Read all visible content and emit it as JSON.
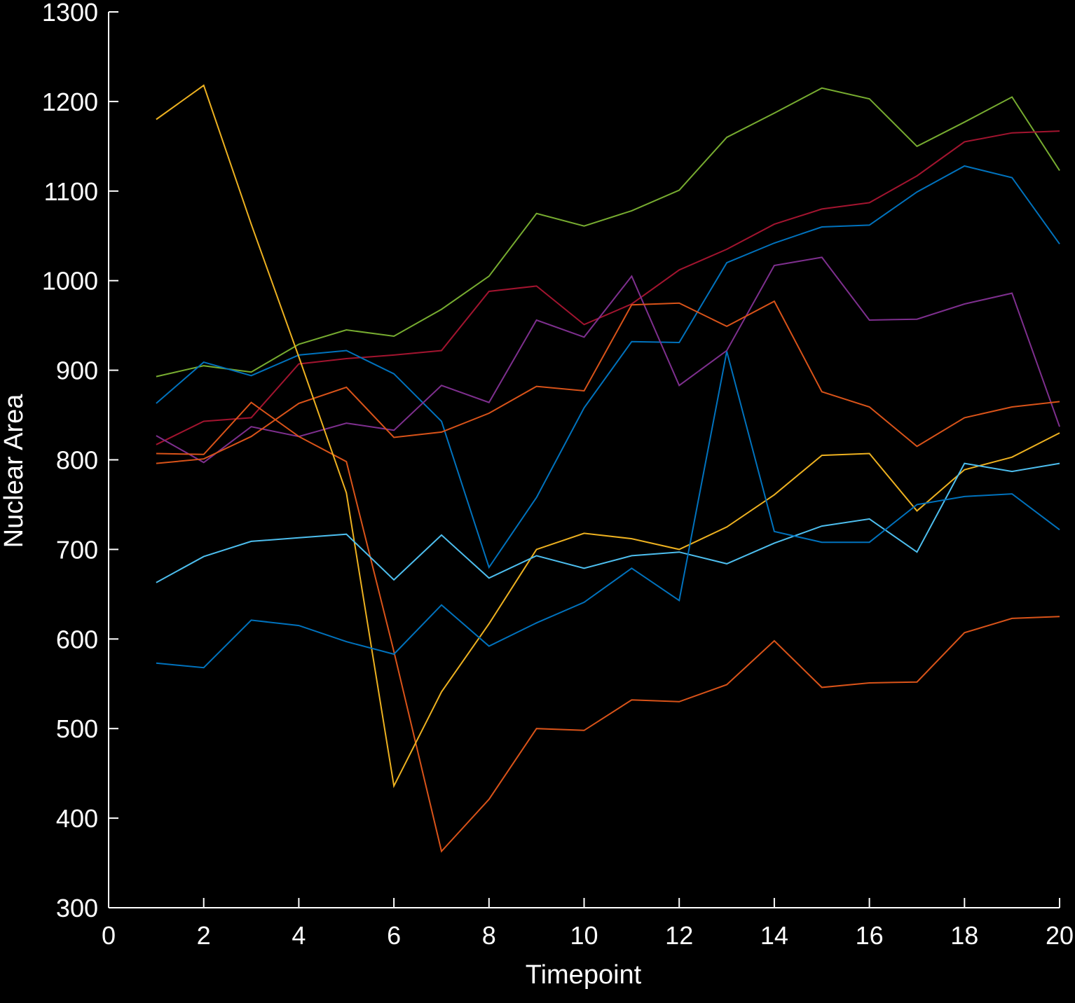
{
  "chart_data": {
    "type": "line",
    "title": "",
    "xlabel": "Timepoint",
    "ylabel": "Nuclear Area",
    "xlim": [
      0,
      20
    ],
    "ylim": [
      300,
      1300
    ],
    "x_ticks": [
      "0",
      "2",
      "4",
      "6",
      "8",
      "10",
      "12",
      "14",
      "16",
      "18",
      "20"
    ],
    "y_ticks": [
      "300",
      "400",
      "500",
      "600",
      "700",
      "800",
      "900",
      "1000",
      "1100",
      "1200",
      "1300"
    ],
    "grid": false,
    "background": "#000000",
    "axis_color": "#ffffff",
    "x": [
      1,
      2,
      3,
      4,
      5,
      6,
      7,
      8,
      9,
      10,
      11,
      12,
      13,
      14,
      15,
      16,
      17,
      18,
      19,
      20
    ],
    "series": [
      {
        "color": "#77ac30",
        "values": [
          893,
          905,
          898,
          929,
          945,
          938,
          968,
          1005,
          1075,
          1061,
          1078,
          1101,
          1160,
          1187,
          1215,
          1203,
          1150,
          1177,
          1205,
          1123
        ]
      },
      {
        "color": "#a2142f",
        "values": [
          817,
          843,
          847,
          907,
          913,
          917,
          922,
          988,
          994,
          951,
          974,
          1012,
          1035,
          1063,
          1080,
          1087,
          1117,
          1155,
          1165,
          1167
        ]
      },
      {
        "color": "#0072bd",
        "values": [
          863,
          909,
          894,
          917,
          922,
          896,
          843,
          680,
          758,
          858,
          932,
          931,
          1020,
          1042,
          1060,
          1062,
          1099,
          1128,
          1115,
          1041
        ]
      },
      {
        "color": "#7e2f8e",
        "values": [
          827,
          797,
          837,
          826,
          841,
          833,
          883,
          864,
          956,
          937,
          1005,
          883,
          922,
          1017,
          1026,
          956,
          957,
          974,
          986,
          837
        ]
      },
      {
        "color": "#d95319",
        "values": [
          796,
          801,
          826,
          863,
          881,
          825,
          831,
          852,
          882,
          877,
          973,
          975,
          949,
          977,
          876,
          859,
          815,
          847,
          859,
          865
        ]
      },
      {
        "color": "#d95319",
        "values": [
          807,
          806,
          864,
          826,
          798,
          586,
          363,
          421,
          500,
          498,
          532,
          530,
          549,
          598,
          546,
          551,
          552,
          607,
          623,
          625
        ]
      },
      {
        "color": "#edb120",
        "values": [
          1180,
          1218,
          1063,
          915,
          763,
          436,
          541,
          617,
          700,
          718,
          712,
          700,
          725,
          761,
          805,
          807,
          743,
          789,
          803,
          830
        ]
      },
      {
        "color": "#4dbeee",
        "values": [
          663,
          692,
          709,
          713,
          717,
          666,
          716,
          668,
          693,
          679,
          693,
          697,
          684,
          707,
          726,
          734,
          697,
          796,
          787,
          796
        ]
      },
      {
        "color": "#0072bd",
        "values": [
          573,
          568,
          621,
          615,
          597,
          583,
          638,
          592,
          618,
          641,
          679,
          643,
          921,
          720,
          708,
          708,
          750,
          759,
          762,
          722
        ]
      }
    ]
  }
}
